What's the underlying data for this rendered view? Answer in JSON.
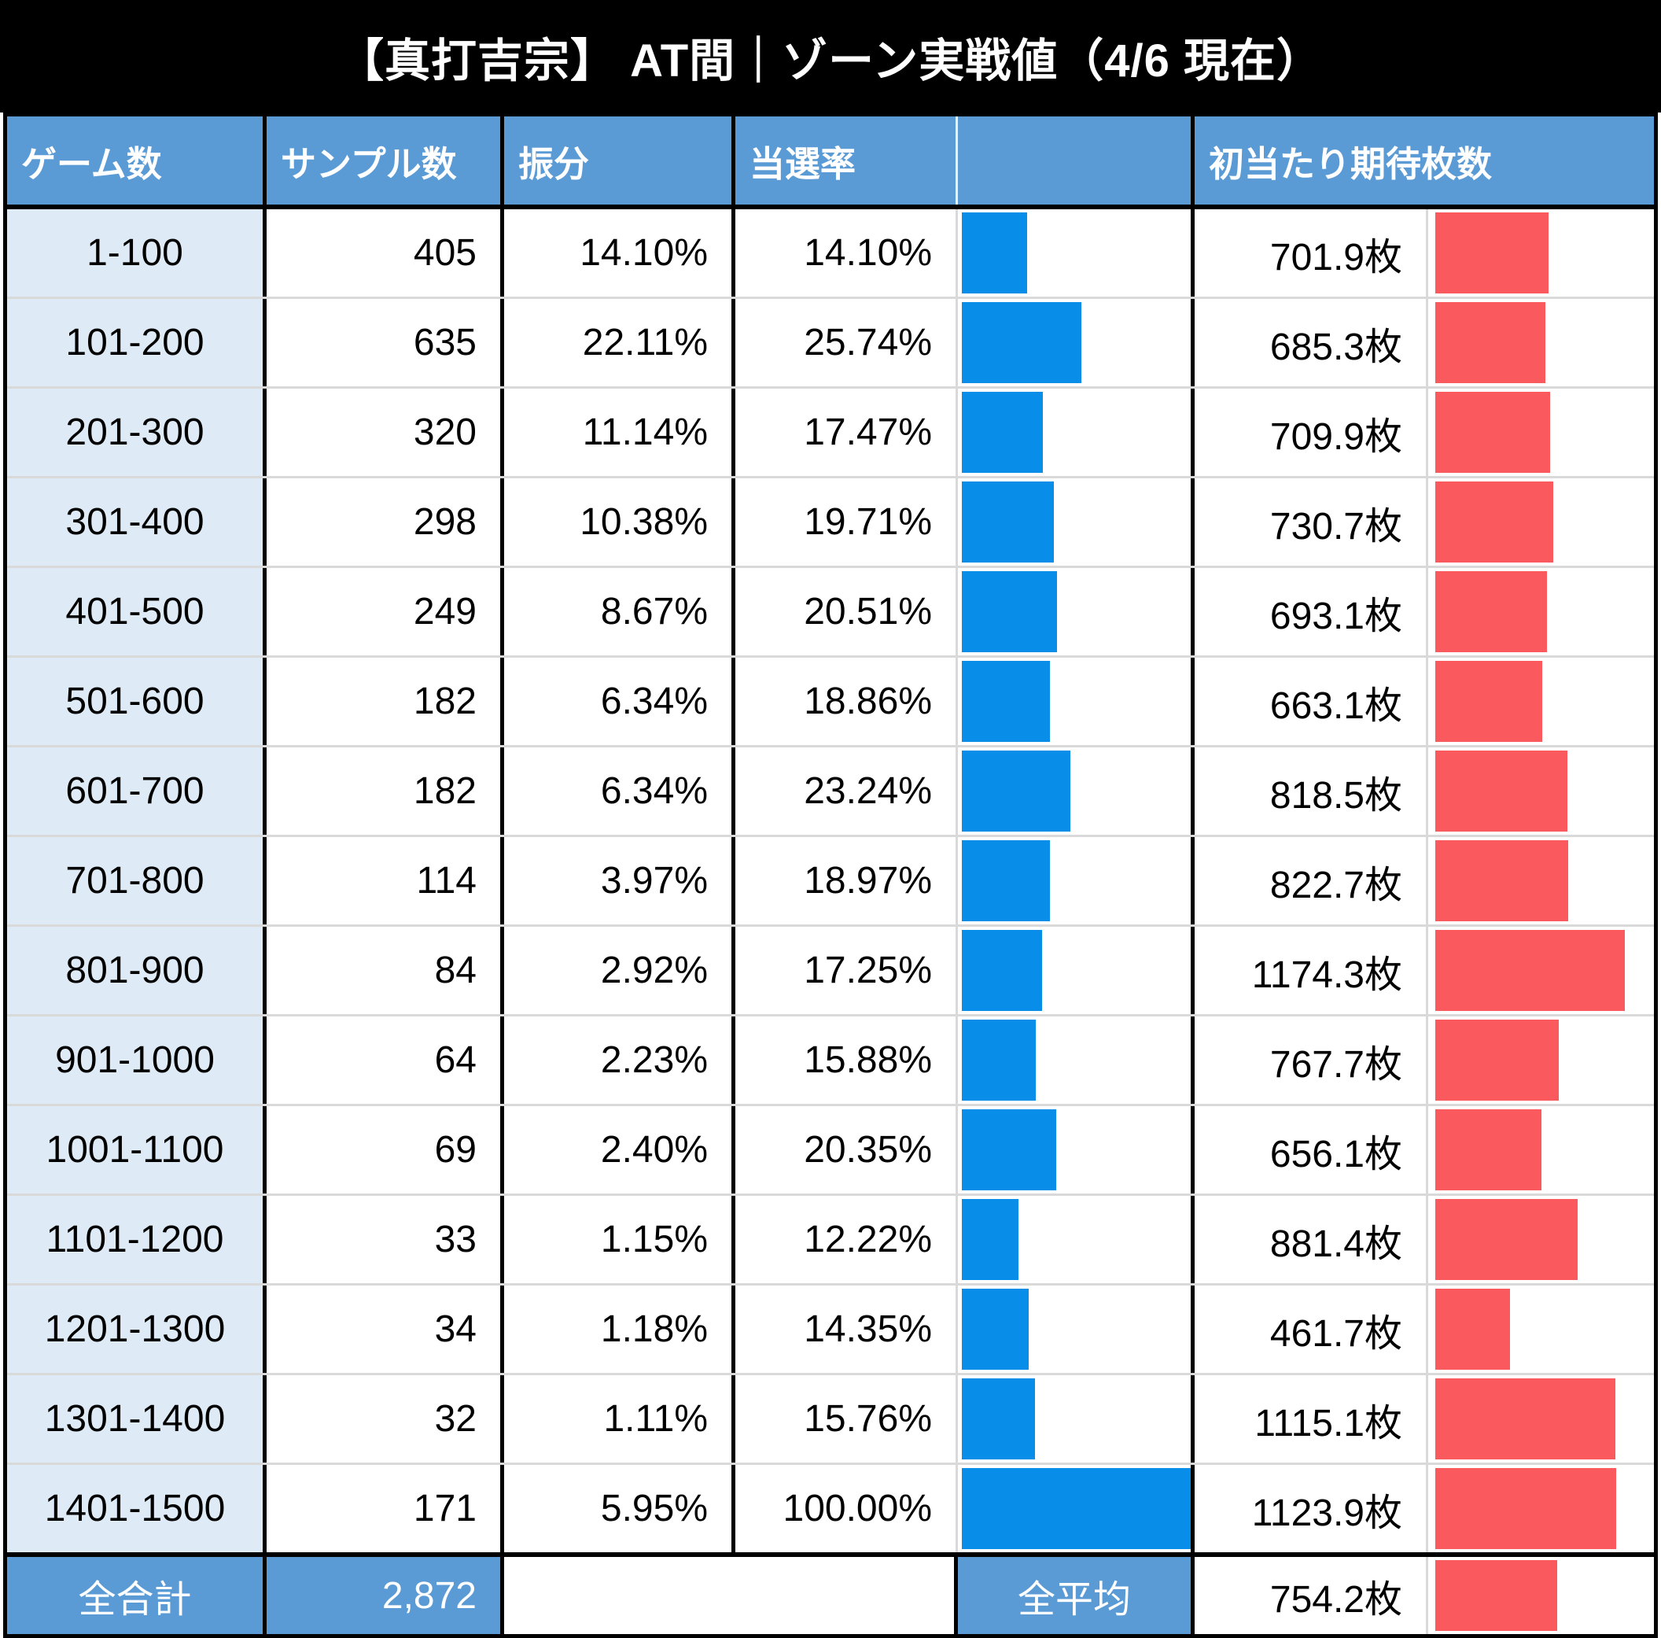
{
  "title": "【真打吉宗】 AT間｜ゾーン実戦値（4/6 現在）",
  "header": {
    "games": "ゲーム数",
    "samples": "サンプル数",
    "share": "振分",
    "win_rate": "当選率",
    "bar_spacer": "",
    "expected_coins": "初当たり期待枚数"
  },
  "footer": {
    "total_label": "全合計",
    "total_samples": "2,872",
    "average_label": "全平均",
    "average_coins": "754.2枚",
    "average_coins_value": 754.2
  },
  "bar_scales": {
    "win_rate_full_at_percent": 50,
    "coins_full_at": 1400
  },
  "colors": {
    "win_bar": "#088DE8",
    "coins_bar": "#FA5A5E",
    "header_bg": "#5B9BD5",
    "row_label_bg": "#DEEBF7",
    "footer_bg": "#5B9BD5",
    "title_bg": "#000000",
    "title_fg": "#FFFFFF",
    "grid_line": "#D9D9D9",
    "border_col": "#000000",
    "text_col": "#000000"
  },
  "chart_data": {
    "type": "table",
    "title": "【真打吉宗】 AT間｜ゾーン実戦値（4/6 現在）",
    "columns": [
      "ゲーム数",
      "サンプル数",
      "振分",
      "当選率",
      "当選率データバー",
      "初当たり期待枚数",
      "期待枚数データバー"
    ],
    "rows": [
      {
        "games": "1-100",
        "samples": "405",
        "share": "14.10%",
        "win_rate": "14.10%",
        "win_rate_value": 14.1,
        "coins": "701.9枚",
        "coins_value": 701.9
      },
      {
        "games": "101-200",
        "samples": "635",
        "share": "22.11%",
        "win_rate": "25.74%",
        "win_rate_value": 25.74,
        "coins": "685.3枚",
        "coins_value": 685.3
      },
      {
        "games": "201-300",
        "samples": "320",
        "share": "11.14%",
        "win_rate": "17.47%",
        "win_rate_value": 17.47,
        "coins": "709.9枚",
        "coins_value": 709.9
      },
      {
        "games": "301-400",
        "samples": "298",
        "share": "10.38%",
        "win_rate": "19.71%",
        "win_rate_value": 19.71,
        "coins": "730.7枚",
        "coins_value": 730.7
      },
      {
        "games": "401-500",
        "samples": "249",
        "share": "8.67%",
        "win_rate": "20.51%",
        "win_rate_value": 20.51,
        "coins": "693.1枚",
        "coins_value": 693.1
      },
      {
        "games": "501-600",
        "samples": "182",
        "share": "6.34%",
        "win_rate": "18.86%",
        "win_rate_value": 18.86,
        "coins": "663.1枚",
        "coins_value": 663.1
      },
      {
        "games": "601-700",
        "samples": "182",
        "share": "6.34%",
        "win_rate": "23.24%",
        "win_rate_value": 23.24,
        "coins": "818.5枚",
        "coins_value": 818.5
      },
      {
        "games": "701-800",
        "samples": "114",
        "share": "3.97%",
        "win_rate": "18.97%",
        "win_rate_value": 18.97,
        "coins": "822.7枚",
        "coins_value": 822.7
      },
      {
        "games": "801-900",
        "samples": "84",
        "share": "2.92%",
        "win_rate": "17.25%",
        "win_rate_value": 17.25,
        "coins": "1174.3枚",
        "coins_value": 1174.3
      },
      {
        "games": "901-1000",
        "samples": "64",
        "share": "2.23%",
        "win_rate": "15.88%",
        "win_rate_value": 15.88,
        "coins": "767.7枚",
        "coins_value": 767.7
      },
      {
        "games": "1001-1100",
        "samples": "69",
        "share": "2.40%",
        "win_rate": "20.35%",
        "win_rate_value": 20.35,
        "coins": "656.1枚",
        "coins_value": 656.1
      },
      {
        "games": "1101-1200",
        "samples": "33",
        "share": "1.15%",
        "win_rate": "12.22%",
        "win_rate_value": 12.22,
        "coins": "881.4枚",
        "coins_value": 881.4
      },
      {
        "games": "1201-1300",
        "samples": "34",
        "share": "1.18%",
        "win_rate": "14.35%",
        "win_rate_value": 14.35,
        "coins": "461.7枚",
        "coins_value": 461.7
      },
      {
        "games": "1301-1400",
        "samples": "32",
        "share": "1.11%",
        "win_rate": "15.76%",
        "win_rate_value": 15.76,
        "coins": "1115.1枚",
        "coins_value": 1115.1
      },
      {
        "games": "1401-1500",
        "samples": "171",
        "share": "5.95%",
        "win_rate": "100.00%",
        "win_rate_value": 100.0,
        "coins": "1123.9枚",
        "coins_value": 1123.9
      }
    ],
    "totals": {
      "total_label": "全合計",
      "samples": "2,872",
      "average_label": "全平均",
      "average_coins": "754.2枚"
    },
    "layout_hints": {
      "win_rate_bar_scale_max_percent": 50,
      "coins_bar_scale_max": 1400,
      "legend": "none",
      "grid": "row separators"
    }
  }
}
